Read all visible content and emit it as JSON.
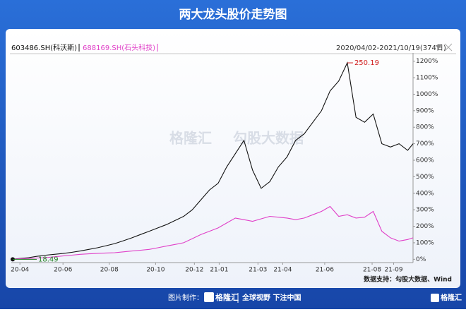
{
  "chart_data": {
    "type": "line",
    "title": "两大龙头股价走势图",
    "date_range": "2020/04/02-2021/10/19(374日)",
    "x": [
      0,
      8,
      16,
      24,
      32,
      40,
      48,
      56,
      64,
      72,
      80,
      88,
      96,
      104,
      112,
      120,
      128,
      136,
      144,
      152,
      160,
      168,
      176,
      184,
      192,
      200,
      208,
      216,
      224,
      232,
      240,
      248,
      256,
      264,
      272,
      280,
      288,
      296,
      304,
      312,
      320,
      328,
      336,
      344,
      352,
      360,
      368,
      373
    ],
    "xlim": [
      0,
      373
    ],
    "xticks": [
      {
        "value": 8,
        "label": "20-04"
      },
      {
        "value": 48,
        "label": "20-06"
      },
      {
        "value": 91,
        "label": "20-08"
      },
      {
        "value": 134,
        "label": "20-10"
      },
      {
        "value": 170,
        "label": "20-12"
      },
      {
        "value": 193,
        "label": "21-01"
      },
      {
        "value": 229,
        "label": "21-03"
      },
      {
        "value": 252,
        "label": "21-04"
      },
      {
        "value": 291,
        "label": "21-06"
      },
      {
        "value": 335,
        "label": "21-08"
      },
      {
        "value": 355,
        "label": "21-09"
      }
    ],
    "ylim": [
      -20,
      1250
    ],
    "yticks": [
      {
        "value": 0,
        "label": "0%"
      },
      {
        "value": 100,
        "label": "100%"
      },
      {
        "value": 200,
        "label": "200%"
      },
      {
        "value": 300,
        "label": "300%"
      },
      {
        "value": 400,
        "label": "400%"
      },
      {
        "value": 500,
        "label": "500%"
      },
      {
        "value": 600,
        "label": "600%"
      },
      {
        "value": 700,
        "label": "700%"
      },
      {
        "value": 800,
        "label": "800%"
      },
      {
        "value": 900,
        "label": "900%"
      },
      {
        "value": 1000,
        "label": "1000%"
      },
      {
        "value": 1100,
        "label": "1100%"
      },
      {
        "value": 1200,
        "label": "1200%"
      }
    ],
    "series": [
      {
        "name": "603486.SH(科沃斯)",
        "color": "#111111",
        "values": [
          0,
          5,
          10,
          18,
          25,
          30,
          35,
          42,
          50,
          60,
          70,
          82,
          95,
          112,
          130,
          150,
          170,
          190,
          210,
          235,
          260,
          300,
          360,
          420,
          460,
          560,
          640,
          720,
          540,
          430,
          470,
          560,
          620,
          720,
          760,
          830,
          900,
          1020,
          1080,
          1190,
          860,
          830,
          880,
          700,
          680,
          700,
          660,
          700
        ]
      },
      {
        "name": "688169.SH(石头科技)",
        "color": "#e040c8",
        "values": [
          0,
          3,
          5,
          8,
          10,
          15,
          20,
          25,
          30,
          33,
          36,
          38,
          40,
          45,
          50,
          55,
          60,
          70,
          80,
          90,
          100,
          125,
          150,
          170,
          190,
          220,
          250,
          240,
          230,
          245,
          260,
          255,
          250,
          240,
          250,
          270,
          290,
          320,
          260,
          270,
          250,
          255,
          290,
          170,
          130,
          110,
          120,
          130
        ]
      }
    ],
    "annotations": [
      {
        "text": "250.19",
        "color": "#d02020"
      },
      {
        "text": "18.49",
        "color": "#208020"
      }
    ],
    "watermark": [
      "格隆汇",
      "勾股大数据"
    ],
    "source": "数据支持：勾股大数据、Wind",
    "footer": {
      "maker_label": "图片制作：",
      "brand": "格隆汇",
      "slogan": "全球视野 下注中国",
      "corner_brand": "格隆汇"
    }
  }
}
